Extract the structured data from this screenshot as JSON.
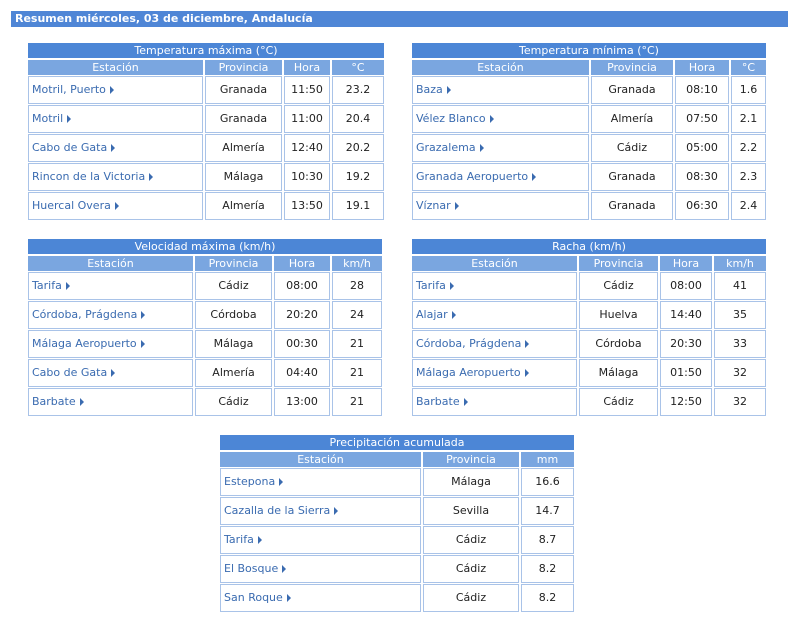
{
  "header": {
    "title": "Resumen miércoles, 03 de diciembre, Andalucía"
  },
  "tables": [
    {
      "title": "Temperatura máxima (°C)",
      "columns": [
        "Estación",
        "Provincia",
        "Hora",
        "°C"
      ],
      "rows": [
        [
          "Motril, Puerto",
          "Granada",
          "11:50",
          "23.2"
        ],
        [
          "Motril",
          "Granada",
          "11:00",
          "20.4"
        ],
        [
          "Cabo de Gata",
          "Almería",
          "12:40",
          "20.2"
        ],
        [
          "Rincon de la Victoria",
          "Málaga",
          "10:30",
          "19.2"
        ],
        [
          "Huercal Overa",
          "Almería",
          "13:50",
          "19.1"
        ]
      ]
    },
    {
      "title": "Temperatura mínima (°C)",
      "columns": [
        "Estación",
        "Provincia",
        "Hora",
        "°C"
      ],
      "rows": [
        [
          "Baza",
          "Granada",
          "08:10",
          "1.6"
        ],
        [
          "Vélez Blanco",
          "Almería",
          "07:50",
          "2.1"
        ],
        [
          "Grazalema",
          "Cádiz",
          "05:00",
          "2.2"
        ],
        [
          "Granada Aeropuerto",
          "Granada",
          "08:30",
          "2.3"
        ],
        [
          "Víznar",
          "Granada",
          "06:30",
          "2.4"
        ]
      ]
    },
    {
      "title": "Velocidad máxima (km/h)",
      "columns": [
        "Estación",
        "Provincia",
        "Hora",
        "km/h"
      ],
      "rows": [
        [
          "Tarifa",
          "Cádiz",
          "08:00",
          "28"
        ],
        [
          "Córdoba, Prágdena",
          "Córdoba",
          "20:20",
          "24"
        ],
        [
          "Málaga Aeropuerto",
          "Málaga",
          "00:30",
          "21"
        ],
        [
          "Cabo de Gata",
          "Almería",
          "04:40",
          "21"
        ],
        [
          "Barbate",
          "Cádiz",
          "13:00",
          "21"
        ]
      ]
    },
    {
      "title": "Racha (km/h)",
      "columns": [
        "Estación",
        "Provincia",
        "Hora",
        "km/h"
      ],
      "rows": [
        [
          "Tarifa",
          "Cádiz",
          "08:00",
          "41"
        ],
        [
          "Alajar",
          "Huelva",
          "14:40",
          "35"
        ],
        [
          "Córdoba, Prágdena",
          "Córdoba",
          "20:30",
          "33"
        ],
        [
          "Málaga Aeropuerto",
          "Málaga",
          "01:50",
          "32"
        ],
        [
          "Barbate",
          "Cádiz",
          "12:50",
          "32"
        ]
      ]
    },
    {
      "title": "Precipitación acumulada",
      "columns": [
        "Estación",
        "Provincia",
        "mm"
      ],
      "rows": [
        [
          "Estepona",
          "Málaga",
          "16.6"
        ],
        [
          "Cazalla de la Sierra",
          "Sevilla",
          "14.7"
        ],
        [
          "Tarifa",
          "Cádiz",
          "8.7"
        ],
        [
          "El Bosque",
          "Cádiz",
          "8.2"
        ],
        [
          "San Roque",
          "Cádiz",
          "8.2"
        ]
      ]
    }
  ]
}
